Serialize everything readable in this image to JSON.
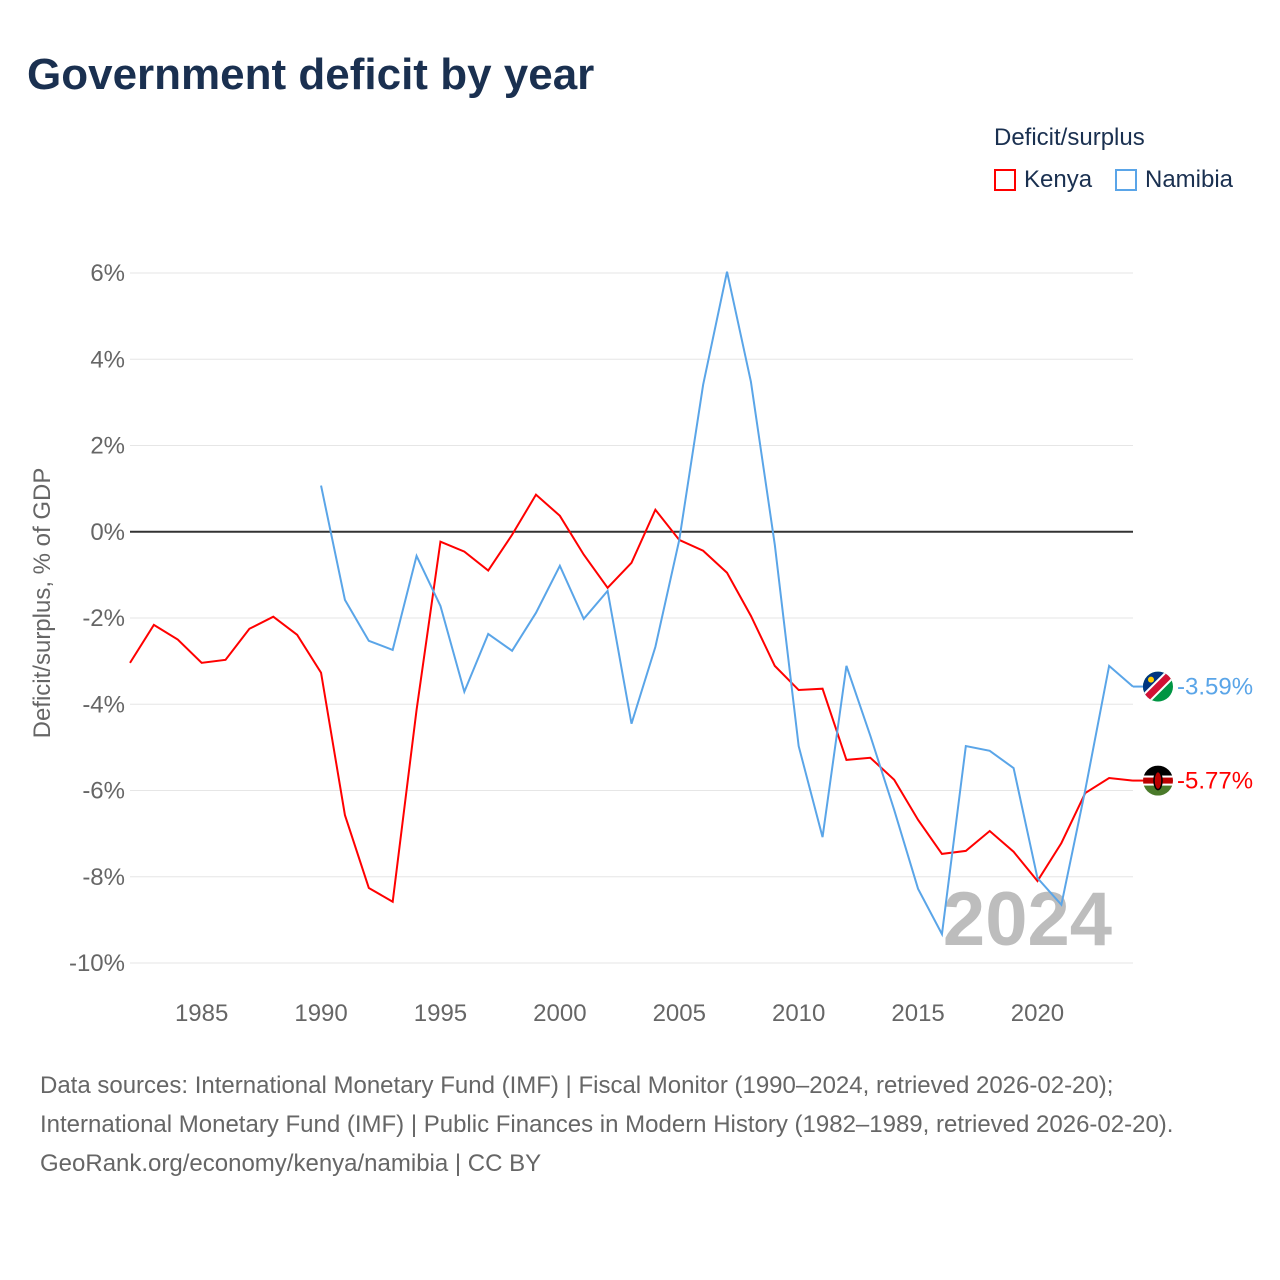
{
  "title": "Government deficit by year",
  "legend": {
    "title": "Deficit/surplus",
    "items": [
      {
        "name": "Kenya",
        "color": "#ff0000"
      },
      {
        "name": "Namibia",
        "color": "#5aa5e8"
      }
    ]
  },
  "watermark_year": "2024",
  "footer": {
    "sources": "Data sources: International Monetary Fund (IMF) | Fiscal Monitor (1990–2024, retrieved 2026-02-20); International Monetary Fund (IMF) | Public Finances in Modern History (1982–1989, retrieved 2026-02-20).",
    "credit": "GeoRank.org/economy/kenya/namibia | CC BY"
  },
  "chart_data": {
    "type": "line",
    "title": "Government deficit by year",
    "xlabel": "",
    "ylabel": "Deficit/surplus, % of GDP",
    "xlim": [
      1982,
      2024
    ],
    "ylim": [
      -10,
      6
    ],
    "xticks": [
      1985,
      1990,
      1995,
      2000,
      2005,
      2010,
      2015,
      2020
    ],
    "yticks": [
      6,
      4,
      2,
      0,
      -2,
      -4,
      -6,
      -8,
      -10
    ],
    "ytick_labels": [
      "6%",
      "4%",
      "2%",
      "0%",
      "-2%",
      "-4%",
      "-6%",
      "-8%",
      "-10%"
    ],
    "legend_position": "top-right",
    "series": [
      {
        "name": "Kenya",
        "color": "#ff0000",
        "end_label": "-5.77%",
        "x": [
          1982,
          1983,
          1984,
          1985,
          1986,
          1987,
          1988,
          1989,
          1990,
          1991,
          1992,
          1993,
          1994,
          1995,
          1996,
          1997,
          1998,
          1999,
          2000,
          2001,
          2002,
          2003,
          2004,
          2005,
          2006,
          2007,
          2008,
          2009,
          2010,
          2011,
          2012,
          2013,
          2014,
          2015,
          2016,
          2017,
          2018,
          2019,
          2020,
          2021,
          2022,
          2023,
          2024
        ],
        "values": [
          -3.04,
          -2.16,
          -2.5,
          -3.04,
          -2.97,
          -2.25,
          -1.97,
          -2.39,
          -3.27,
          -6.57,
          -8.26,
          -8.58,
          -4.13,
          -0.23,
          -0.46,
          -0.9,
          -0.07,
          0.86,
          0.37,
          -0.53,
          -1.3,
          -0.72,
          0.51,
          -0.19,
          -0.44,
          -0.95,
          -1.95,
          -3.11,
          -3.67,
          -3.64,
          -5.29,
          -5.24,
          -5.75,
          -6.68,
          -7.47,
          -7.4,
          -6.94,
          -7.42,
          -8.1,
          -7.22,
          -6.06,
          -5.71,
          -5.77
        ]
      },
      {
        "name": "Namibia",
        "color": "#5aa5e8",
        "end_label": "-3.59%",
        "x": [
          1990,
          1991,
          1992,
          1993,
          1994,
          1995,
          1996,
          1997,
          1998,
          1999,
          2000,
          2001,
          2002,
          2003,
          2004,
          2005,
          2006,
          2007,
          2008,
          2009,
          2010,
          2011,
          2012,
          2013,
          2014,
          2015,
          2016,
          2017,
          2018,
          2019,
          2020,
          2021,
          2022,
          2023,
          2024
        ],
        "values": [
          1.07,
          -1.58,
          -2.53,
          -2.74,
          -0.56,
          -1.72,
          -3.71,
          -2.37,
          -2.76,
          -1.88,
          -0.79,
          -2.02,
          -1.37,
          -4.45,
          -2.67,
          -0.19,
          3.41,
          6.03,
          3.48,
          -0.3,
          -4.97,
          -7.08,
          -3.11,
          -4.73,
          -6.45,
          -8.28,
          -9.33,
          -4.97,
          -5.08,
          -5.48,
          -8.03,
          -8.65,
          -5.99,
          -3.11,
          -3.59
        ]
      }
    ]
  }
}
